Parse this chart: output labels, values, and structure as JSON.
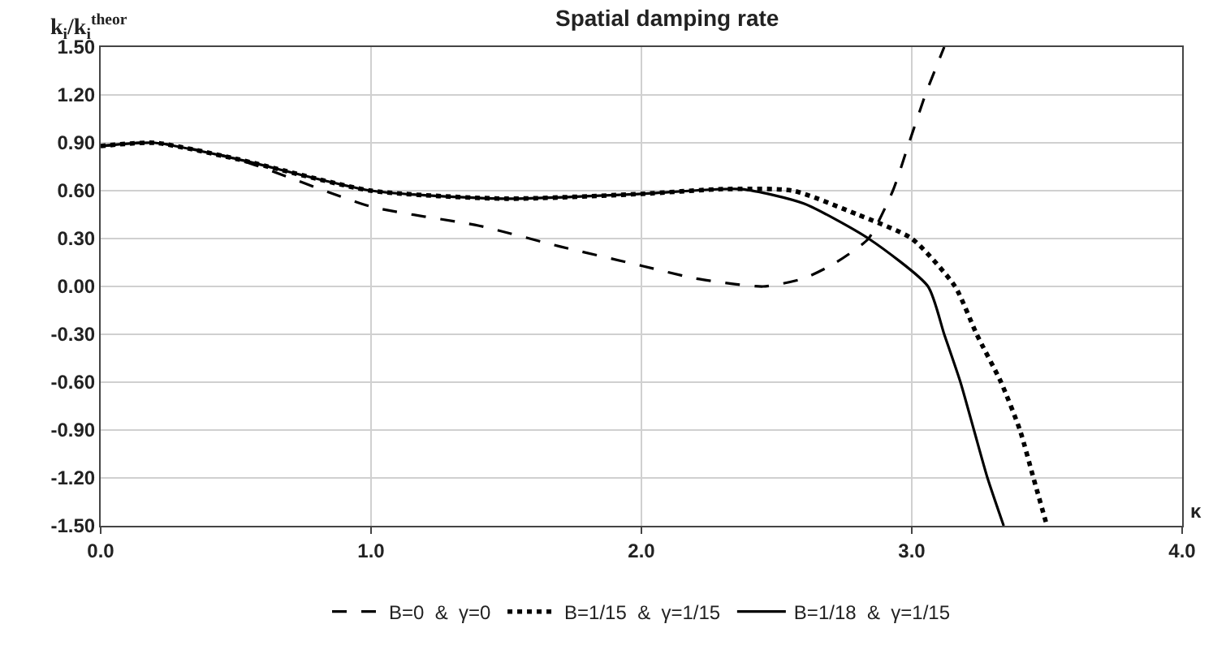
{
  "chart_data": {
    "type": "line",
    "title": "Spatial damping rate",
    "xlabel": "κ",
    "ylabel": "k$_{i}$/k$_{i}$$^{theor}$",
    "xlim": [
      0,
      4
    ],
    "xticks": [
      {
        "value": 0,
        "label": "0.0"
      },
      {
        "value": 1,
        "label": "1.0"
      },
      {
        "value": 2,
        "label": "2.0"
      },
      {
        "value": 3,
        "label": "3.0"
      },
      {
        "value": 4,
        "label": "4.0"
      }
    ],
    "ylim": [
      -1.5,
      1.5
    ],
    "yticks": [
      {
        "value": -1.5,
        "label": "-1.50"
      },
      {
        "value": -1.2,
        "label": "-1.20"
      },
      {
        "value": -0.9,
        "label": "-0.90"
      },
      {
        "value": -0.6,
        "label": "-0.60"
      },
      {
        "value": -0.3,
        "label": "-0.30"
      },
      {
        "value": 0,
        "label": "0.00"
      },
      {
        "value": 0.3,
        "label": "0.30"
      },
      {
        "value": 0.6,
        "label": "0.60"
      },
      {
        "value": 0.9,
        "label": "0.90"
      },
      {
        "value": 1.2,
        "label": "1.20"
      },
      {
        "value": 1.5,
        "label": "1.50"
      }
    ],
    "grid": true,
    "legend": "bottom",
    "marker": "none",
    "series": [
      {
        "name": "B=0  &  γ=0",
        "color": "#000000",
        "line_style": "dashed",
        "x": [
          0,
          0.2,
          0.5,
          1.0,
          1.4,
          1.7,
          2.0,
          2.2,
          2.45,
          2.6,
          2.72,
          2.84,
          2.93,
          2.99,
          3.05,
          3.12
        ],
        "values": [
          0.88,
          0.9,
          0.8,
          0.5,
          0.38,
          0.25,
          0.13,
          0.05,
          0,
          0.05,
          0.15,
          0.3,
          0.6,
          0.9,
          1.2,
          1.5
        ]
      },
      {
        "name": "B=1/15  &  γ=1/15",
        "color": "#000000",
        "line_style": "dotted",
        "x": [
          0,
          0.2,
          0.5,
          1.0,
          1.5,
          2.0,
          2.3,
          2.56,
          2.8,
          3.0,
          3.16,
          3.24,
          3.33,
          3.4,
          3.45,
          3.5
        ],
        "values": [
          0.88,
          0.9,
          0.8,
          0.6,
          0.55,
          0.58,
          0.61,
          0.6,
          0.45,
          0.3,
          0,
          -0.3,
          -0.6,
          -0.9,
          -1.2,
          -1.5
        ]
      },
      {
        "name": "B=1/18  &  γ=1/15",
        "color": "#000000",
        "line_style": "solid",
        "x": [
          0,
          0.2,
          0.5,
          1.0,
          1.5,
          2.0,
          2.37,
          2.6,
          2.84,
          3.06,
          3.12,
          3.18,
          3.23,
          3.28,
          3.34
        ],
        "values": [
          0.88,
          0.9,
          0.8,
          0.6,
          0.55,
          0.58,
          0.61,
          0.52,
          0.3,
          0,
          -0.3,
          -0.6,
          -0.9,
          -1.2,
          -1.5
        ]
      }
    ]
  }
}
